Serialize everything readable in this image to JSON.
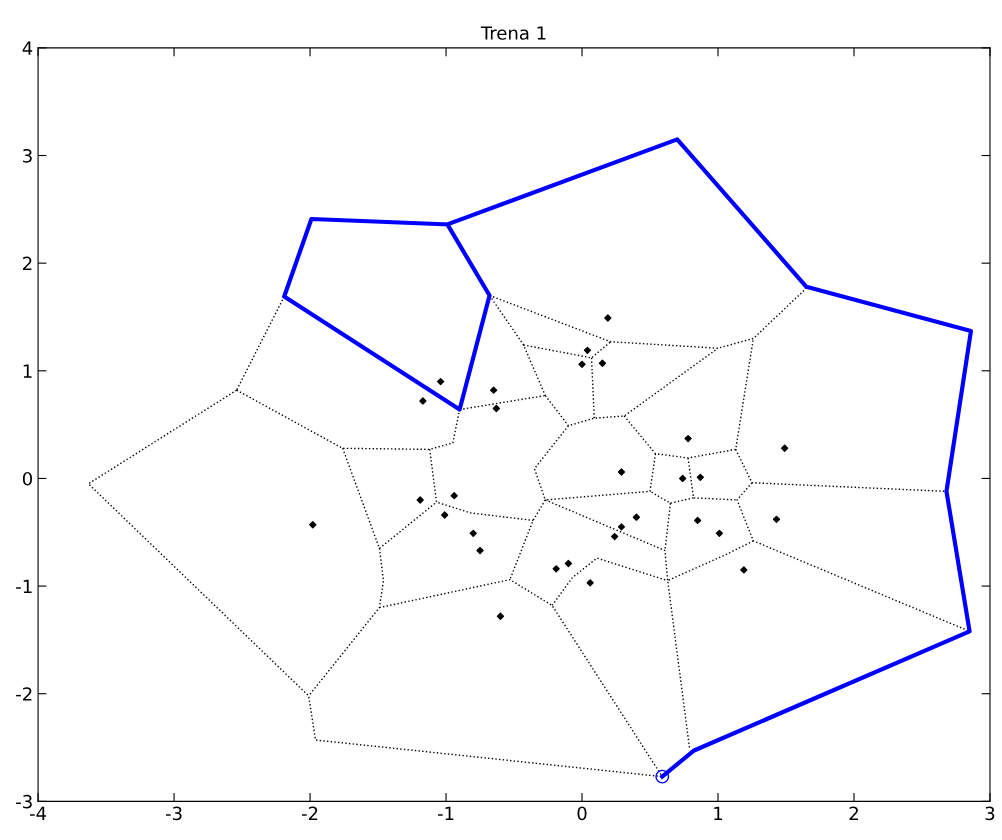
{
  "chart_data": {
    "type": "line",
    "title": "Trena 1",
    "xlim": [
      -4,
      3
    ],
    "ylim": [
      -3,
      4
    ],
    "xticks": [
      -4,
      -3,
      -2,
      -1,
      0,
      1,
      2,
      3
    ],
    "yticks": [
      -3,
      -2,
      -1,
      0,
      1,
      2,
      3,
      4
    ],
    "grid": false,
    "legend": false,
    "series": [
      {
        "color": "#000000",
        "line_style": "dotted",
        "marker": "none",
        "x": [
          -2.19,
          -2.54,
          null,
          -2.54,
          -3.63,
          -2.01,
          -1.96,
          0.59,
          null,
          -2.54,
          -1.76,
          -1.12,
          -0.95,
          -0.9,
          null,
          -0.9,
          -0.27,
          null,
          -0.68,
          -0.43,
          -0.27,
          null,
          -0.68,
          0.21,
          1.0,
          1.26,
          1.66,
          null,
          -0.43,
          0.07,
          0.21,
          null,
          0.07,
          0.09,
          null,
          -0.27,
          -0.1,
          0.09,
          0.31,
          1.0,
          null,
          -0.1,
          -0.35,
          -0.27,
          null,
          0.31,
          0.54,
          0.78,
          1.13,
          1.26,
          null,
          1.13,
          1.25,
          2.68,
          null,
          1.25,
          1.14,
          1.26,
          2.85,
          null,
          0.78,
          0.82,
          1.14,
          null,
          0.82,
          0.65,
          0.5,
          null,
          0.54,
          0.5,
          -0.27,
          null,
          -0.27,
          -0.36,
          -0.53,
          null,
          -1.12,
          -1.07,
          -0.82,
          -0.36,
          null,
          -1.76,
          -1.49,
          -1.07,
          null,
          -1.49,
          -1.46,
          -1.49,
          -2.01,
          null,
          -1.49,
          -0.53,
          -0.22,
          0.59,
          null,
          -0.22,
          -0.07,
          0.11,
          0.63,
          null,
          -0.27,
          0.61,
          0.63,
          null,
          0.65,
          0.61,
          null,
          1.26,
          1.07,
          0.63,
          0.79
        ],
        "values": [
          1.69,
          0.82,
          null,
          0.82,
          -0.05,
          -2.02,
          -2.43,
          -2.77,
          null,
          0.82,
          0.28,
          0.27,
          0.33,
          0.64,
          null,
          0.64,
          0.77,
          null,
          1.7,
          1.24,
          0.77,
          null,
          1.7,
          1.27,
          1.21,
          1.3,
          1.78,
          null,
          1.24,
          1.12,
          1.27,
          null,
          1.12,
          0.56,
          null,
          0.77,
          0.49,
          0.56,
          0.58,
          1.21,
          null,
          0.49,
          0.09,
          -0.2,
          null,
          0.58,
          0.23,
          0.19,
          0.27,
          1.3,
          null,
          0.27,
          -0.04,
          -0.12,
          null,
          -0.04,
          -0.2,
          -0.58,
          -1.42,
          null,
          0.19,
          -0.18,
          -0.2,
          null,
          -0.18,
          -0.23,
          -0.12,
          null,
          0.23,
          -0.12,
          -0.2,
          null,
          -0.2,
          -0.39,
          -0.94,
          null,
          0.27,
          -0.22,
          -0.32,
          -0.39,
          null,
          0.28,
          -0.65,
          -0.22,
          null,
          -0.65,
          -0.95,
          -1.2,
          -2.02,
          null,
          -1.2,
          -0.94,
          -1.18,
          -2.77,
          null,
          -1.18,
          -0.92,
          -0.74,
          -0.95,
          null,
          -0.2,
          -0.67,
          -0.95,
          null,
          -0.23,
          -0.67,
          null,
          -0.58,
          -0.7,
          -0.95,
          -2.5
        ]
      },
      {
        "type": "scatter",
        "color": "#000000",
        "marker": "diamond",
        "x": [
          0.19,
          0.04,
          0.0,
          0.15,
          -1.04,
          -1.17,
          -0.65,
          -0.63,
          0.78,
          1.49,
          0.29,
          0.74,
          0.87,
          -1.98,
          -1.19,
          -0.94,
          -1.01,
          -0.8,
          -0.75,
          0.4,
          0.29,
          0.24,
          0.85,
          1.01,
          1.43,
          1.19,
          -0.19,
          -0.1,
          0.06,
          -0.6
        ],
        "values": [
          1.49,
          1.19,
          1.06,
          1.07,
          0.9,
          0.72,
          0.82,
          0.65,
          0.37,
          0.28,
          0.06,
          0.0,
          0.01,
          -0.43,
          -0.2,
          -0.16,
          -0.34,
          -0.51,
          -0.67,
          -0.36,
          -0.45,
          -0.54,
          -0.39,
          -0.51,
          -0.38,
          -0.85,
          -0.84,
          -0.79,
          -0.97,
          -1.28
        ]
      },
      {
        "color": "#0000ff",
        "line_style": "solid",
        "marker": "none",
        "x": [
          0.59,
          0.82,
          2.85,
          2.68,
          2.86,
          1.65,
          0.7,
          -0.99,
          -0.68,
          -0.9,
          -2.19,
          -1.99,
          -0.99
        ],
        "values": [
          -2.77,
          -2.53,
          -1.42,
          -0.12,
          1.37,
          1.78,
          3.15,
          2.36,
          1.7,
          0.64,
          1.69,
          2.41,
          2.36
        ]
      },
      {
        "type": "scatter",
        "color": "#0000ff",
        "marker": "circle",
        "x": [
          0.59
        ],
        "values": [
          -2.77
        ]
      }
    ]
  }
}
